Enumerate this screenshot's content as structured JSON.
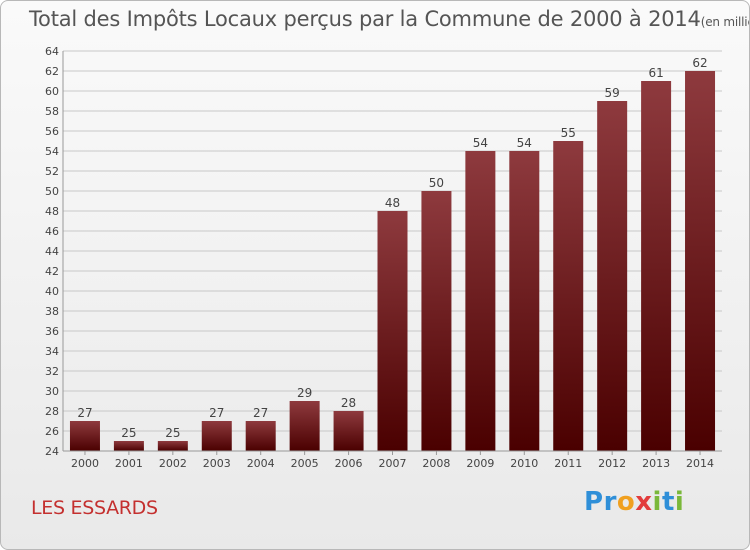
{
  "title": "Total des Impôts Locaux perçus par la Commune de 2000 à 2014",
  "title_unit": "(en milliers d'€)",
  "commune": "LES ESSARDS",
  "logo": {
    "text": "Proxiti",
    "letters": [
      {
        "ch": "P",
        "color": "#2f8fd8"
      },
      {
        "ch": "r",
        "color": "#2f8fd8"
      },
      {
        "ch": "o",
        "color": "#f0a020"
      },
      {
        "ch": "x",
        "color": "#e23c3c"
      },
      {
        "ch": "i",
        "color": "#7ab83a"
      },
      {
        "ch": "t",
        "color": "#2f8fd8"
      },
      {
        "ch": "i",
        "color": "#7ab83a"
      }
    ]
  },
  "colors": {
    "bar_top": "#8e3a3e",
    "bar_bottom": "#4a0000",
    "grid": "#c8c8c8",
    "axis_text": "#444444",
    "title": "#555555",
    "commune": "#c4302f"
  },
  "chart_data": {
    "type": "bar",
    "title": "Total des Impôts Locaux perçus par la Commune de 2000 à 2014",
    "xlabel": "",
    "ylabel": "en milliers d'€",
    "categories": [
      "2000",
      "2001",
      "2002",
      "2003",
      "2004",
      "2005",
      "2006",
      "2007",
      "2008",
      "2009",
      "2010",
      "2011",
      "2012",
      "2013",
      "2014"
    ],
    "values": [
      27,
      25,
      25,
      27,
      27,
      29,
      28,
      48,
      50,
      54,
      54,
      55,
      59,
      61,
      62
    ],
    "ylim": [
      24,
      64
    ],
    "ytick_step": 2,
    "grid": true
  }
}
